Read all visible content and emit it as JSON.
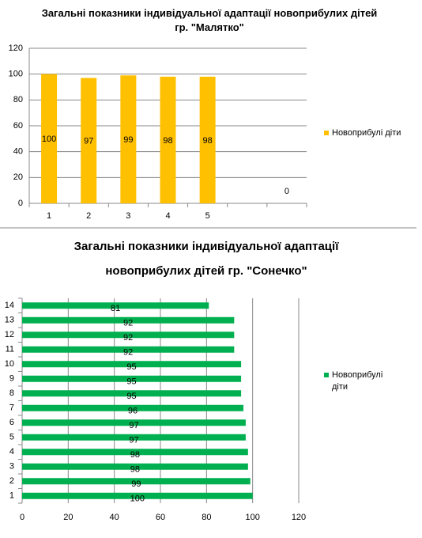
{
  "chart_data": [
    {
      "type": "bar",
      "title": "Загальні показники індивідуальної адаптації новоприбулих дітей гр. \"Малятко\"",
      "categories": [
        "1",
        "2",
        "3",
        "4",
        "5",
        null,
        null
      ],
      "series": [
        {
          "name": "Новоприбулі діти",
          "color": "#ffc000",
          "values": [
            100,
            97,
            99,
            98,
            98,
            null,
            0
          ]
        }
      ],
      "ylim": [
        0,
        120
      ],
      "yticks": [
        0,
        20,
        40,
        60,
        80,
        100,
        120
      ],
      "grid": true,
      "legend": "right"
    },
    {
      "type": "hbar",
      "title": "Загальні показники індивідуальної адаптації новоприбулих дітей гр. \"Сонечко\"",
      "categories": [
        "1",
        "2",
        "3",
        "4",
        "5",
        "6",
        "7",
        "8",
        "9",
        "10",
        "11",
        "12",
        "13",
        "14"
      ],
      "series": [
        {
          "name": "Новоприбулі діти",
          "color": "#00b050",
          "values": [
            100,
            99,
            98,
            98,
            97,
            97,
            96,
            95,
            95,
            95,
            92,
            92,
            92,
            81
          ]
        }
      ],
      "xlim": [
        0,
        120
      ],
      "xticks": [
        0,
        20,
        40,
        60,
        80,
        100,
        120
      ],
      "grid": true,
      "legend": "right"
    }
  ]
}
